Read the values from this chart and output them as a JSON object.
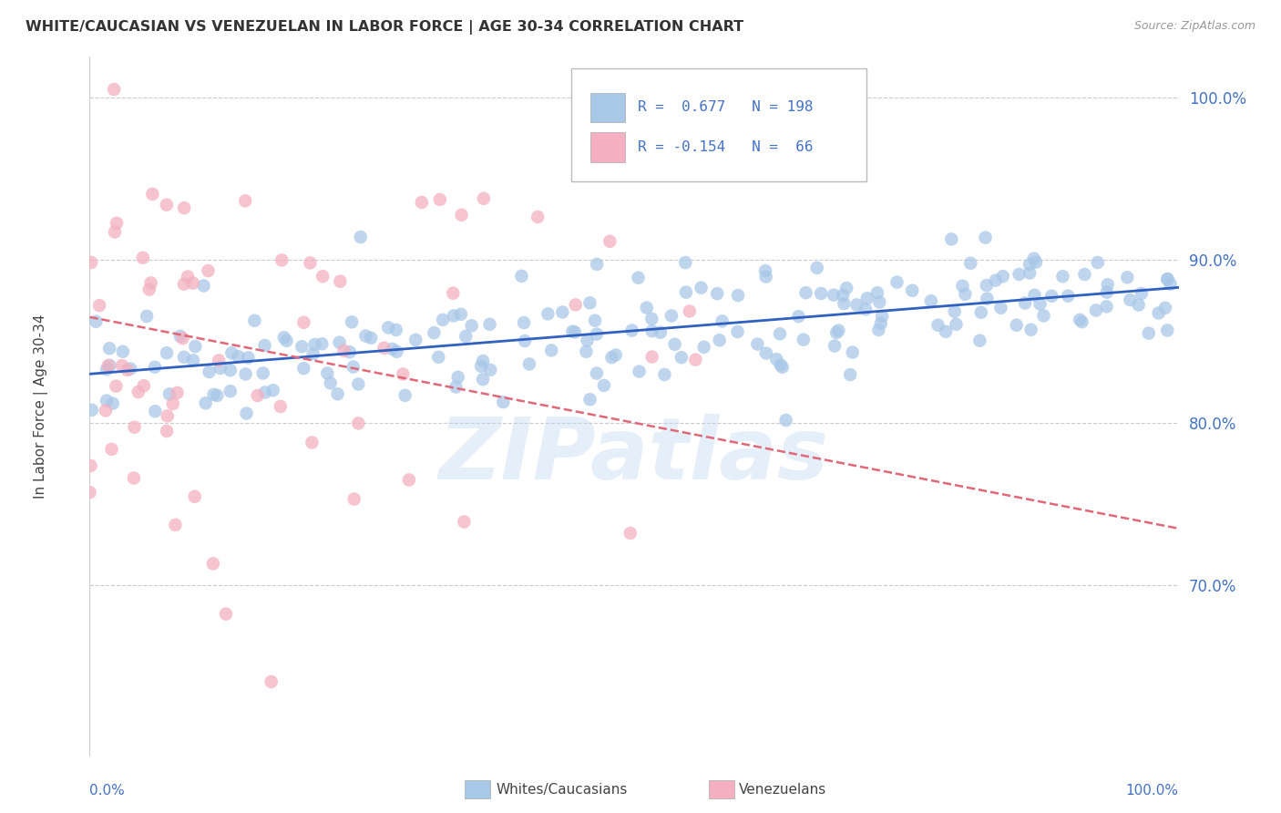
{
  "title": "WHITE/CAUCASIAN VS VENEZUELAN IN LABOR FORCE | AGE 30-34 CORRELATION CHART",
  "source": "Source: ZipAtlas.com",
  "ylabel": "In Labor Force | Age 30-34",
  "ytick_labels": [
    "100.0%",
    "90.0%",
    "80.0%",
    "70.0%"
  ],
  "ytick_positions": [
    1.0,
    0.9,
    0.8,
    0.7
  ],
  "xlim": [
    0.0,
    1.0
  ],
  "ylim": [
    0.595,
    1.025
  ],
  "watermark": "ZIPatlas",
  "legend": {
    "blue_r": "0.677",
    "blue_n": "198",
    "pink_r": "-0.154",
    "pink_n": "66"
  },
  "blue_color": "#a8c8e8",
  "pink_color": "#f4b0c0",
  "trend_blue_color": "#3060c0",
  "trend_pink_color": "#e06878",
  "title_color": "#333333",
  "axis_label_color": "#4472c4",
  "grid_color": "#cccccc",
  "background_color": "#ffffff",
  "blue_seed": 42,
  "pink_seed": 99
}
